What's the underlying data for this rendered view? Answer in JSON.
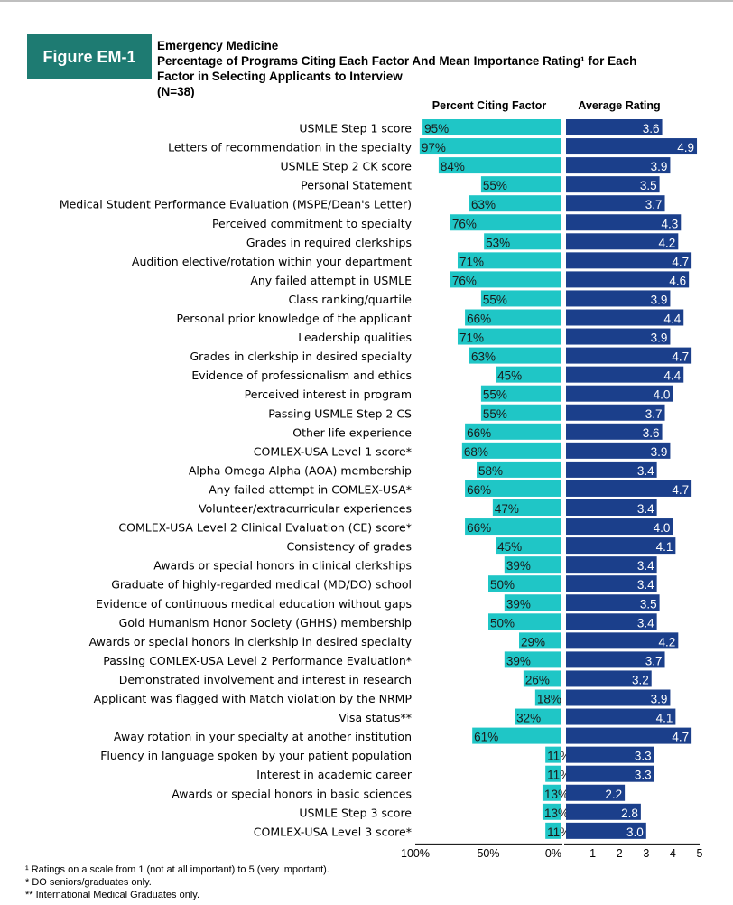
{
  "figure": {
    "label": "Figure EM-1",
    "title_line1": "Emergency Medicine",
    "title_line2": "Percentage of Programs Citing Each Factor And Mean Importance Rating¹ for Each",
    "title_line3": "Factor in Selecting Applicants to Interview",
    "title_line4": "(N=38)"
  },
  "headers": {
    "percent": "Percent Citing Factor",
    "rating": "Average Rating"
  },
  "footnotes": {
    "f1": "¹ Ratings on a scale from 1 (not at all important) to 5 (very important).",
    "f2": "* DO seniors/graduates only.",
    "f3": "** International Medical Graduates only."
  },
  "chart_data": {
    "type": "bar",
    "categories": [
      "USMLE Step 1 score",
      "Letters of recommendation in the specialty",
      "USMLE Step 2 CK score",
      "Personal Statement",
      "Medical Student Performance Evaluation (MSPE/Dean's Letter)",
      "Perceived commitment to specialty",
      "Grades in required clerkships",
      "Audition elective/rotation within your department",
      "Any failed attempt in USMLE",
      "Class ranking/quartile",
      "Personal prior knowledge of the applicant",
      "Leadership qualities",
      "Grades in clerkship in desired specialty",
      "Evidence of professionalism and ethics",
      "Perceived interest in program",
      "Passing USMLE Step 2 CS",
      "Other life experience",
      "COMLEX-USA Level 1 score*",
      "Alpha Omega Alpha (AOA) membership",
      "Any failed attempt in COMLEX-USA*",
      "Volunteer/extracurricular experiences",
      "COMLEX-USA Level 2 Clinical Evaluation (CE) score*",
      "Consistency of grades",
      "Awards or special honors in clinical clerkships",
      "Graduate of highly-regarded medical (MD/DO) school",
      "Evidence of continuous medical education without gaps",
      "Gold Humanism Honor Society (GHHS) membership",
      "Awards or special honors in clerkship in desired specialty",
      "Passing COMLEX-USA Level 2 Performance Evaluation*",
      "Demonstrated involvement and interest in research",
      "Applicant was flagged with Match violation by the NRMP",
      "Visa status**",
      "Away rotation in your specialty at another institution",
      "Fluency in language spoken by your patient population",
      "Interest in academic career",
      "Awards or special honors in basic sciences",
      "USMLE Step 3 score",
      "COMLEX-USA Level 3 score*"
    ],
    "series": [
      {
        "name": "Percent Citing Factor",
        "color": "#1fc6c6",
        "values": [
          95,
          97,
          84,
          55,
          63,
          76,
          53,
          71,
          76,
          55,
          66,
          71,
          63,
          45,
          55,
          55,
          66,
          68,
          58,
          66,
          47,
          66,
          45,
          39,
          50,
          39,
          50,
          29,
          39,
          26,
          18,
          32,
          61,
          11,
          11,
          13,
          13,
          11
        ],
        "labels": [
          "95%",
          "97%",
          "84%",
          "55%",
          "63%",
          "76%",
          "53%",
          "71%",
          "76%",
          "55%",
          "66%",
          "71%",
          "63%",
          "45%",
          "55%",
          "55%",
          "66%",
          "68%",
          "58%",
          "66%",
          "47%",
          "66%",
          "45%",
          "39%",
          "50%",
          "39%",
          "50%",
          "29%",
          "39%",
          "26%",
          "18%",
          "32%",
          "61%",
          "11%",
          "11%",
          "13%",
          "13%",
          "11%"
        ]
      },
      {
        "name": "Average Rating",
        "color": "#1b3f8b",
        "values": [
          3.6,
          4.9,
          3.9,
          3.5,
          3.7,
          4.3,
          4.2,
          4.7,
          4.6,
          3.9,
          4.4,
          3.9,
          4.7,
          4.4,
          4.0,
          3.7,
          3.6,
          3.9,
          3.4,
          4.7,
          3.4,
          4.0,
          4.1,
          3.4,
          3.4,
          3.5,
          3.4,
          4.2,
          3.7,
          3.2,
          3.9,
          4.1,
          4.7,
          3.3,
          3.3,
          2.2,
          2.8,
          3.0
        ],
        "labels": [
          "3.6",
          "4.9",
          "3.9",
          "3.5",
          "3.7",
          "4.3",
          "4.2",
          "4.7",
          "4.6",
          "3.9",
          "4.4",
          "3.9",
          "4.7",
          "4.4",
          "4.0",
          "3.7",
          "3.6",
          "3.9",
          "3.4",
          "4.7",
          "3.4",
          "4.0",
          "4.1",
          "3.4",
          "3.4",
          "3.5",
          "3.4",
          "4.2",
          "3.7",
          "3.2",
          "3.9",
          "4.1",
          "4.7",
          "3.3",
          "3.3",
          "2.2",
          "2.8",
          "3.0"
        ]
      }
    ],
    "percent_axis": {
      "ticks": [
        "100%",
        "50%",
        "0%"
      ],
      "range": [
        0,
        100
      ],
      "reversed": true
    },
    "rating_axis": {
      "ticks": [
        "1",
        "2",
        "3",
        "4",
        "5"
      ],
      "range": [
        1,
        5
      ]
    },
    "legend": "none",
    "grid": false
  }
}
